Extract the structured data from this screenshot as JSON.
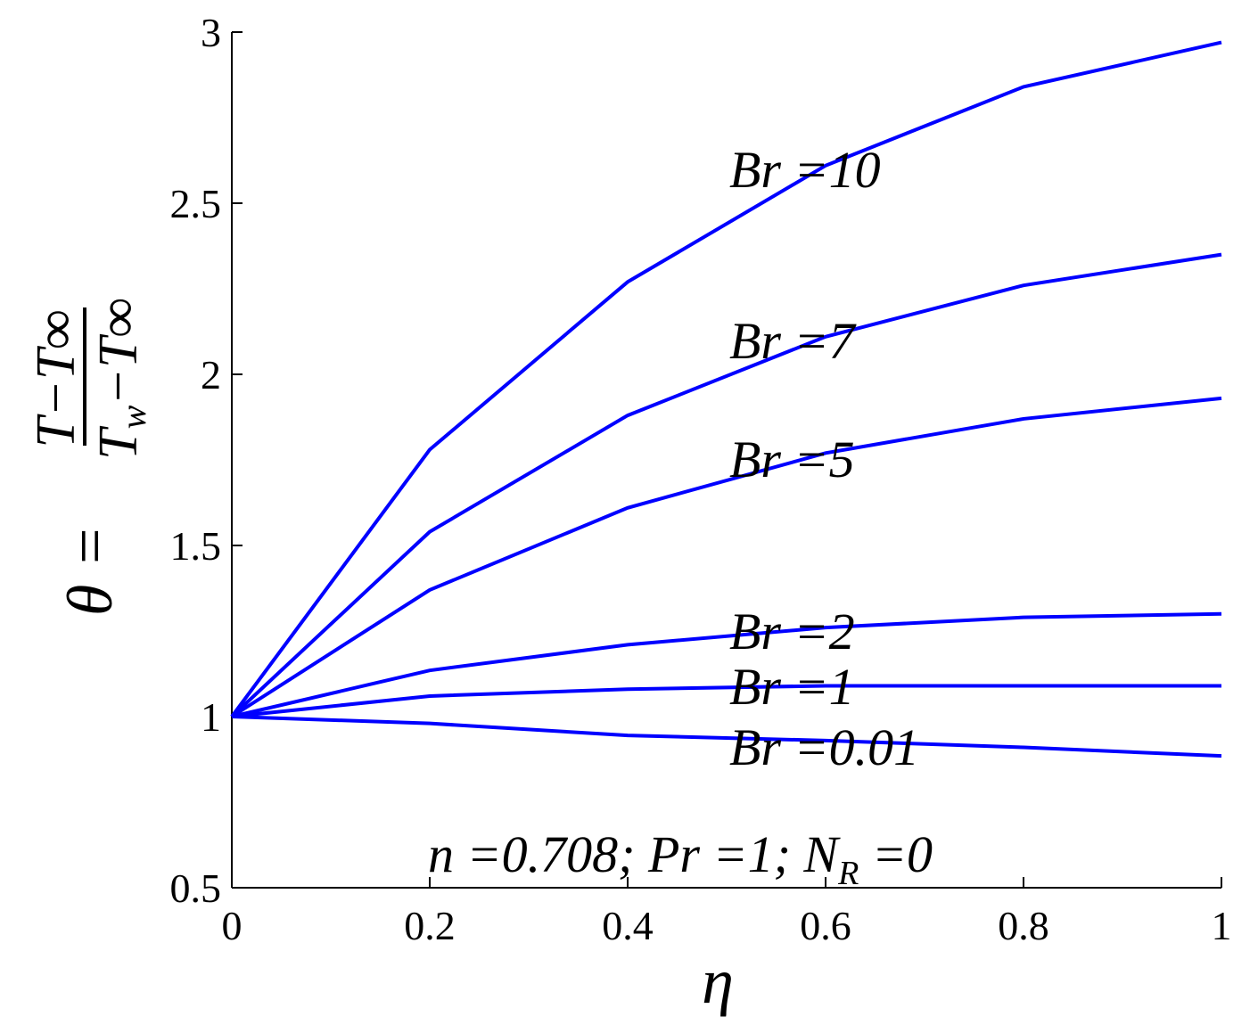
{
  "chart_data": {
    "type": "line",
    "x_label": "η",
    "y_label_parts": [
      "θ =",
      "T−T∞",
      "T",
      "w",
      "−T∞"
    ],
    "x": [
      0,
      0.2,
      0.4,
      0.6,
      0.8,
      1
    ],
    "series": [
      {
        "name": "Br =10",
        "color": "#0000ff",
        "values": [
          1,
          1.78,
          2.27,
          2.61,
          2.84,
          2.97
        ]
      },
      {
        "name": "Br =7",
        "color": "#0000ff",
        "values": [
          1,
          1.54,
          1.88,
          2.11,
          2.26,
          2.35
        ]
      },
      {
        "name": "Br =5",
        "color": "#0000ff",
        "values": [
          1,
          1.37,
          1.61,
          1.77,
          1.87,
          1.93
        ]
      },
      {
        "name": "Br =2",
        "color": "#0000ff",
        "values": [
          1,
          1.135,
          1.21,
          1.26,
          1.29,
          1.3
        ]
      },
      {
        "name": "Br =1",
        "color": "#0000ff",
        "values": [
          1,
          1.06,
          1.08,
          1.09,
          1.09,
          1.09
        ]
      },
      {
        "name": "Br =0.01",
        "color": "#0000ff",
        "values": [
          1,
          0.98,
          0.945,
          0.93,
          0.91,
          0.885
        ]
      }
    ],
    "annotation_parts": [
      "n =0.708; Pr =1; N",
      "R",
      " =0"
    ],
    "xlim": [
      0,
      1
    ],
    "xticks": [
      0,
      0.2,
      0.4,
      0.6,
      0.8,
      1
    ],
    "ylim": [
      0.5,
      3
    ],
    "yticks": [
      0.5,
      1,
      1.5,
      2,
      2.5,
      3
    ]
  }
}
